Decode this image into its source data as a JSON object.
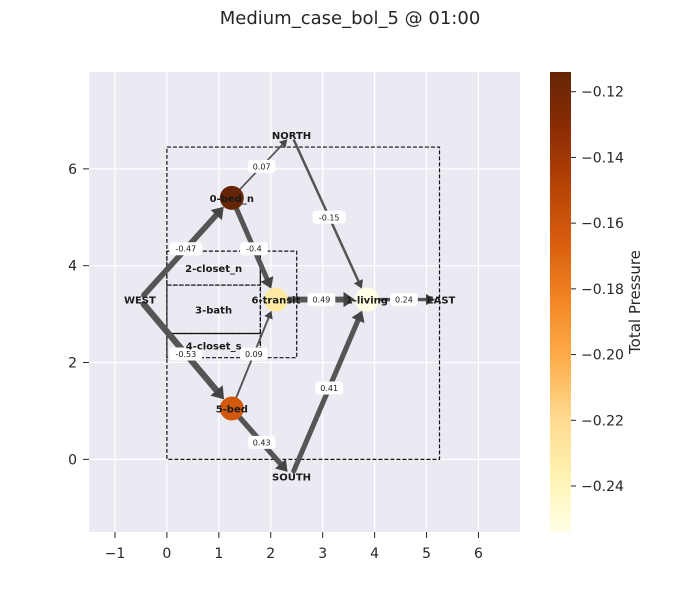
{
  "title": "Medium_case_bol_5 @ 01:00",
  "chart_data": {
    "type": "network-graph",
    "xlim": [
      -1.5,
      6.8
    ],
    "ylim": [
      -1.5,
      8.0
    ],
    "x_ticks": [
      -1,
      0,
      1,
      2,
      3,
      4,
      5,
      6
    ],
    "y_ticks": [
      0,
      2,
      4,
      6
    ],
    "grid": true,
    "colorbar": {
      "label": "Total Pressure",
      "min": -0.254,
      "max": -0.114,
      "ticks": [
        -0.12,
        -0.14,
        -0.16,
        -0.18,
        -0.2,
        -0.22,
        -0.24
      ],
      "colors": [
        "#ffffe5",
        "#fff2b0",
        "#fed98e",
        "#fdae4b",
        "#f48624",
        "#d95f0e",
        "#b74305",
        "#8c2d04",
        "#662506"
      ]
    },
    "rooms": [
      {
        "x0": 0.0,
        "y0": 0.0,
        "x1": 5.25,
        "y1": 6.45
      },
      {
        "x0": 0.0,
        "y0": 3.6,
        "x1": 1.8,
        "y1": 4.3
      },
      {
        "x0": 0.0,
        "y0": 2.6,
        "x1": 1.8,
        "y1": 3.6
      },
      {
        "x0": 0.0,
        "y0": 2.1,
        "x1": 1.8,
        "y1": 2.6
      },
      {
        "x0": 1.8,
        "y0": 2.1,
        "x1": 2.5,
        "y1": 4.3
      },
      {
        "x0": 2.5,
        "y0": 0.0,
        "x1": 2.5,
        "y1": 6.45
      }
    ],
    "nodes": [
      {
        "id": "NORTH",
        "label": "NORTH",
        "x": 2.4,
        "y": 6.7,
        "pressure": null
      },
      {
        "id": "SOUTH",
        "label": "SOUTH",
        "x": 2.4,
        "y": -0.35,
        "pressure": null
      },
      {
        "id": "WEST",
        "label": "WEST",
        "x": -0.52,
        "y": 3.3,
        "pressure": null
      },
      {
        "id": "EAST",
        "label": "EAST",
        "x": 5.28,
        "y": 3.3,
        "pressure": null
      },
      {
        "id": "0-bed_n",
        "label": "0-bed_n",
        "x": 1.25,
        "y": 5.4,
        "pressure": -0.114
      },
      {
        "id": "1-living",
        "label": "1-living",
        "x": 3.85,
        "y": 3.3,
        "pressure": -0.254
      },
      {
        "id": "2-closet_n",
        "label": "2-closet_n",
        "x": 0.9,
        "y": 3.95,
        "pressure": null
      },
      {
        "id": "3-bath",
        "label": "3-bath",
        "x": 0.9,
        "y": 3.1,
        "pressure": null
      },
      {
        "id": "4-closet_s",
        "label": "4-closet_s",
        "x": 0.9,
        "y": 2.35,
        "pressure": null
      },
      {
        "id": "5-bed",
        "label": "5-bed",
        "x": 1.25,
        "y": 1.05,
        "pressure": -0.163
      },
      {
        "id": "6-transit",
        "label": "6-transit",
        "x": 2.1,
        "y": 3.3,
        "pressure": -0.23
      }
    ],
    "edges": [
      {
        "from": "WEST",
        "to": "0-bed_n",
        "flow": -0.47,
        "label": "-0.47"
      },
      {
        "from": "WEST",
        "to": "5-bed",
        "flow": -0.53,
        "label": "-0.53"
      },
      {
        "from": "0-bed_n",
        "to": "NORTH",
        "flow": 0.07,
        "label": "0.07"
      },
      {
        "from": "0-bed_n",
        "to": "6-transit",
        "flow": -0.4,
        "label": "-0.4"
      },
      {
        "from": "5-bed",
        "to": "6-transit",
        "flow": 0.09,
        "label": "0.09"
      },
      {
        "from": "5-bed",
        "to": "SOUTH",
        "flow": 0.43,
        "label": "0.43"
      },
      {
        "from": "NORTH",
        "to": "1-living",
        "flow": -0.15,
        "label": "-0.15"
      },
      {
        "from": "6-transit",
        "to": "1-living",
        "flow": 0.49,
        "label": "0.49"
      },
      {
        "from": "SOUTH",
        "to": "1-living",
        "flow": 0.41,
        "label": "0.41"
      },
      {
        "from": "1-living",
        "to": "EAST",
        "flow": 0.24,
        "label": "0.24"
      }
    ]
  }
}
